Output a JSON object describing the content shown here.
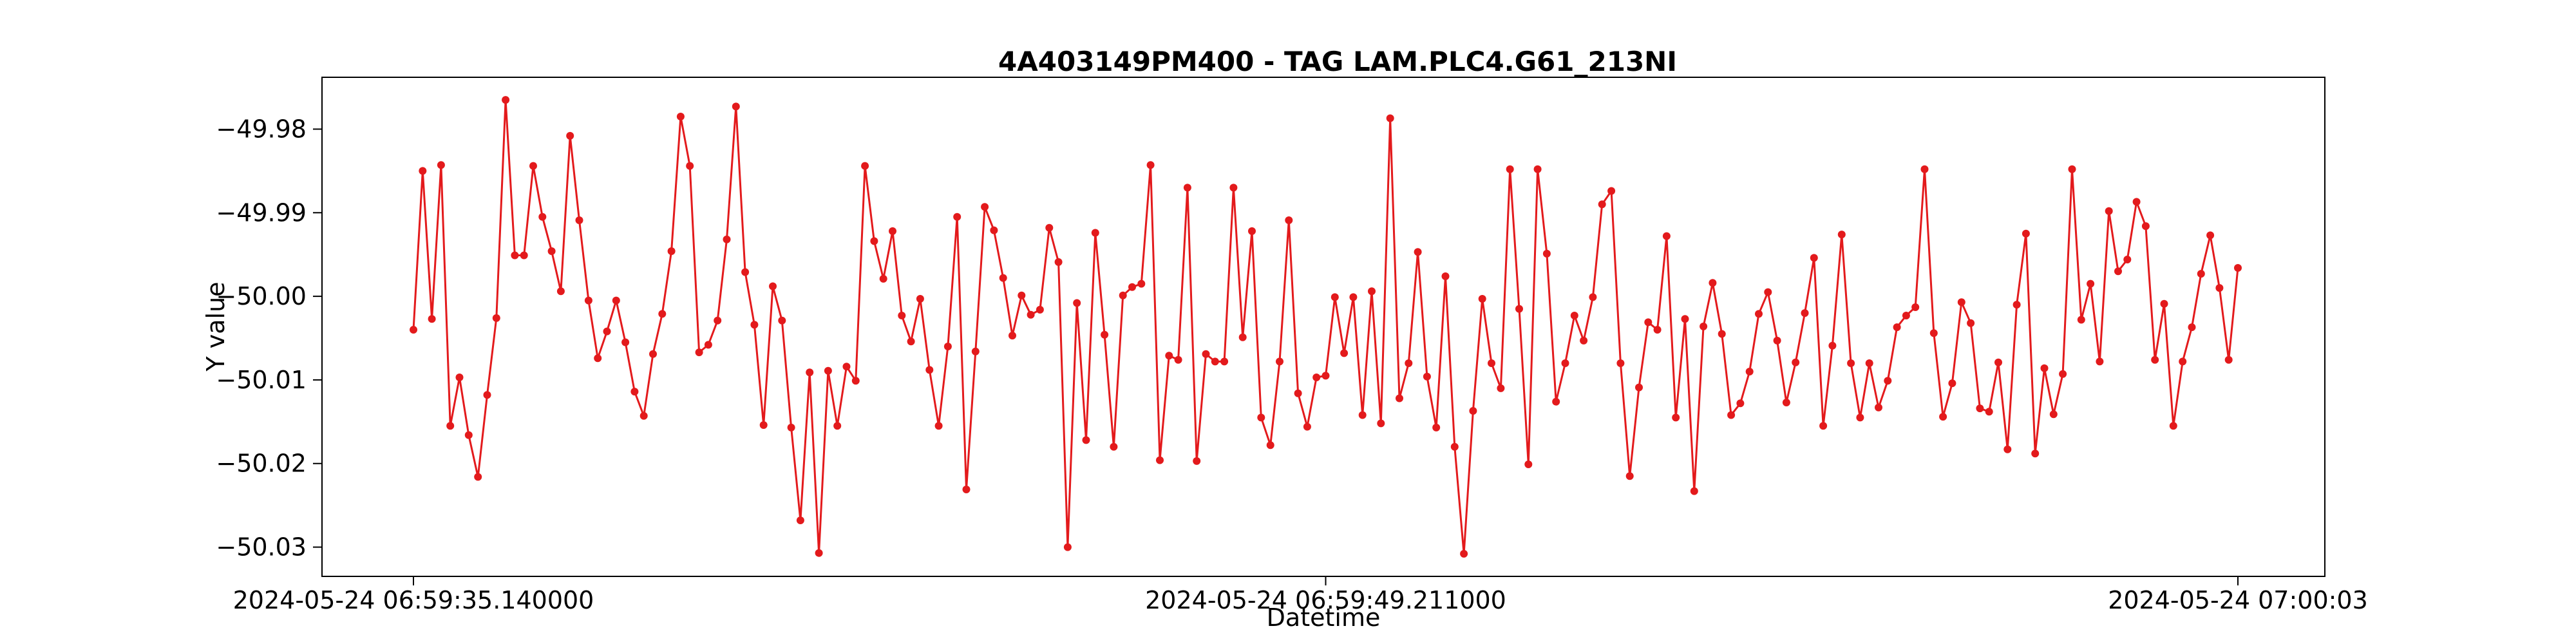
{
  "chart_data": {
    "type": "line",
    "title": "4A403149PM400 - TAG LAM.PLC4.G61_213NI",
    "xlabel": "Datetime",
    "ylabel": "Y value",
    "x_tick_labels": [
      "2024-05-24 06:59:35.140000",
      "2024-05-24 06:59:49.211000",
      "2024-05-24 07:00:03"
    ],
    "y_ticks": [
      -49.98,
      -49.99,
      -50.0,
      -50.01,
      -50.02,
      -50.03
    ],
    "y_tick_labels": [
      "−49.98",
      "−49.99",
      "−50.00",
      "−50.01",
      "−50.02",
      "−50.03"
    ],
    "ylim": [
      -50.0335,
      -49.9738
    ],
    "grid": false,
    "legend": "none",
    "line_color": "#e31a1c",
    "series": [
      {
        "values": [
          -50.004,
          -49.985,
          -50.0027,
          -49.9843,
          -50.0155,
          -50.0097,
          -50.0166,
          -50.0216,
          -50.0118,
          -50.0026,
          -49.9765,
          -49.9951,
          -49.9951,
          -49.9844,
          -49.9905,
          -49.9946,
          -49.9994,
          -49.9808,
          -49.9909,
          -50.0005,
          -50.0074,
          -50.0042,
          -50.0005,
          -50.0055,
          -50.0114,
          -50.0143,
          -50.0069,
          -50.0021,
          -49.9946,
          -49.9785,
          -49.9844,
          -50.0067,
          -50.0058,
          -50.0029,
          -49.9932,
          -49.9773,
          -49.9971,
          -50.0034,
          -50.0154,
          -49.9988,
          -50.0029,
          -50.0157,
          -50.0268,
          -50.0091,
          -50.0307,
          -50.0089,
          -50.0155,
          -50.0084,
          -50.0101,
          -49.9844,
          -49.9934,
          -49.9979,
          -49.9922,
          -50.0023,
          -50.0054,
          -50.0003,
          -50.0088,
          -50.0155,
          -50.006,
          -49.9905,
          -50.0231,
          -50.0066,
          -49.9893,
          -49.9921,
          -49.9978,
          -50.0047,
          -49.9999,
          -50.0022,
          -50.0016,
          -49.9918,
          -49.9959,
          -50.03,
          -50.0008,
          -50.0172,
          -49.9924,
          -50.0046,
          -50.018,
          -49.9999,
          -49.9989,
          -49.9985,
          -49.9843,
          -50.0196,
          -50.0071,
          -50.0076,
          -49.987,
          -50.0197,
          -50.0069,
          -50.0078,
          -50.0078,
          -49.987,
          -50.0049,
          -49.9922,
          -50.0145,
          -50.0178,
          -50.0078,
          -49.9909,
          -50.0116,
          -50.0156,
          -50.0097,
          -50.0095,
          -50.0001,
          -50.0068,
          -50.0001,
          -50.0142,
          -49.9994,
          -50.0152,
          -49.9787,
          -50.0122,
          -50.008,
          -49.9947,
          -50.0096,
          -50.0157,
          -49.9976,
          -50.018,
          -50.0308,
          -50.0137,
          -50.0003,
          -50.008,
          -50.011,
          -49.9848,
          -50.0015,
          -50.0201,
          -49.9848,
          -49.9949,
          -50.0126,
          -50.008,
          -50.0023,
          -50.0053,
          -50.0001,
          -49.989,
          -49.9874,
          -50.008,
          -50.0215,
          -50.0109,
          -50.0031,
          -50.004,
          -49.9928,
          -50.0145,
          -50.0027,
          -50.0233,
          -50.0036,
          -49.9984,
          -50.0045,
          -50.0142,
          -50.0128,
          -50.009,
          -50.0021,
          -49.9995,
          -50.0053,
          -50.0127,
          -50.0079,
          -50.002,
          -49.9954,
          -50.0155,
          -50.0059,
          -49.9926,
          -50.008,
          -50.0145,
          -50.008,
          -50.0133,
          -50.0101,
          -50.0037,
          -50.0023,
          -50.0013,
          -49.9848,
          -50.0044,
          -50.0144,
          -50.0104,
          -50.0007,
          -50.0032,
          -50.0134,
          -50.0138,
          -50.0079,
          -50.0183,
          -50.001,
          -49.9925,
          -50.0188,
          -50.0086,
          -50.0141,
          -50.0093,
          -49.9848,
          -50.0028,
          -49.9985,
          -50.0078,
          -49.9898,
          -49.997,
          -49.9956,
          -49.9887,
          -49.9916,
          -50.0076,
          -50.0009,
          -50.0155,
          -50.0078,
          -50.0037,
          -49.9973,
          -49.9927,
          -49.999,
          -50.0076,
          -49.9966
        ]
      }
    ]
  }
}
